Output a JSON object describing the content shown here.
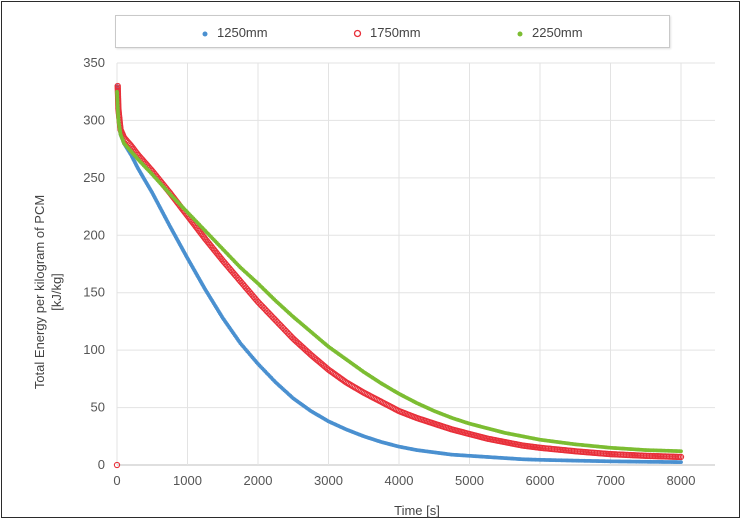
{
  "chart_data": {
    "type": "scatter",
    "xlabel": "Time [s]",
    "ylabel_lines": [
      "Total Energy per kilogram of PCM",
      "[kJ/kg]"
    ],
    "xlim": [
      0,
      8000
    ],
    "ylim": [
      0,
      350
    ],
    "x_ticks": [
      "0",
      "1000",
      "2000",
      "3000",
      "4000",
      "5000",
      "6000",
      "7000",
      "8000"
    ],
    "y_ticks": [
      "0",
      "50",
      "100",
      "150",
      "200",
      "250",
      "300",
      "350"
    ],
    "grid": true,
    "legend_position": "top",
    "series": [
      {
        "name": "1250mm",
        "color": "#4a90d0",
        "marker": "dot",
        "x": [
          0,
          20,
          50,
          100,
          200,
          300,
          500,
          750,
          1000,
          1250,
          1500,
          1750,
          2000,
          2250,
          2500,
          2750,
          3000,
          3250,
          3500,
          3750,
          4000,
          4250,
          4500,
          4750,
          5000,
          5250,
          5500,
          5750,
          6000,
          6500,
          7000,
          7500,
          8000
        ],
        "y": [
          330,
          300,
          288,
          280,
          270,
          258,
          237,
          208,
          180,
          153,
          128,
          106,
          88,
          72,
          58,
          47,
          38,
          31,
          25,
          20,
          16,
          13,
          11,
          9,
          8,
          7,
          6,
          5,
          4.5,
          3.8,
          3.2,
          2.8,
          2.5
        ]
      },
      {
        "name": "1750mm",
        "color": "#e8303a",
        "marker": "ring",
        "x": [
          0,
          10,
          20,
          50,
          100,
          200,
          300,
          500,
          750,
          1000,
          1250,
          1500,
          1750,
          2000,
          2250,
          2500,
          2750,
          3000,
          3250,
          3500,
          3750,
          4000,
          4250,
          4500,
          4750,
          5000,
          5250,
          5500,
          5750,
          6000,
          6500,
          7000,
          7500,
          8000
        ],
        "y": [
          0,
          330,
          310,
          292,
          285,
          278,
          270,
          256,
          237,
          217,
          197,
          178,
          160,
          142,
          126,
          110,
          96,
          83,
          72,
          63,
          55,
          47,
          41,
          36,
          31,
          27,
          23,
          20,
          17,
          15,
          12,
          9.5,
          8,
          7
        ]
      },
      {
        "name": "2250mm",
        "color": "#7cbd32",
        "marker": "dot",
        "x": [
          0,
          20,
          50,
          100,
          200,
          300,
          500,
          750,
          1000,
          1250,
          1500,
          1750,
          2000,
          2250,
          2500,
          2750,
          3000,
          3250,
          3500,
          3750,
          4000,
          4250,
          4500,
          4750,
          5000,
          5250,
          5500,
          5750,
          6000,
          6500,
          7000,
          7500,
          8000
        ],
        "y": [
          325,
          300,
          288,
          280,
          273,
          266,
          253,
          236,
          220,
          204,
          188,
          172,
          158,
          143,
          129,
          116,
          103,
          92,
          81,
          71,
          62,
          54,
          47,
          41,
          36,
          32,
          28,
          25,
          22,
          18,
          15,
          13,
          12
        ]
      }
    ]
  }
}
